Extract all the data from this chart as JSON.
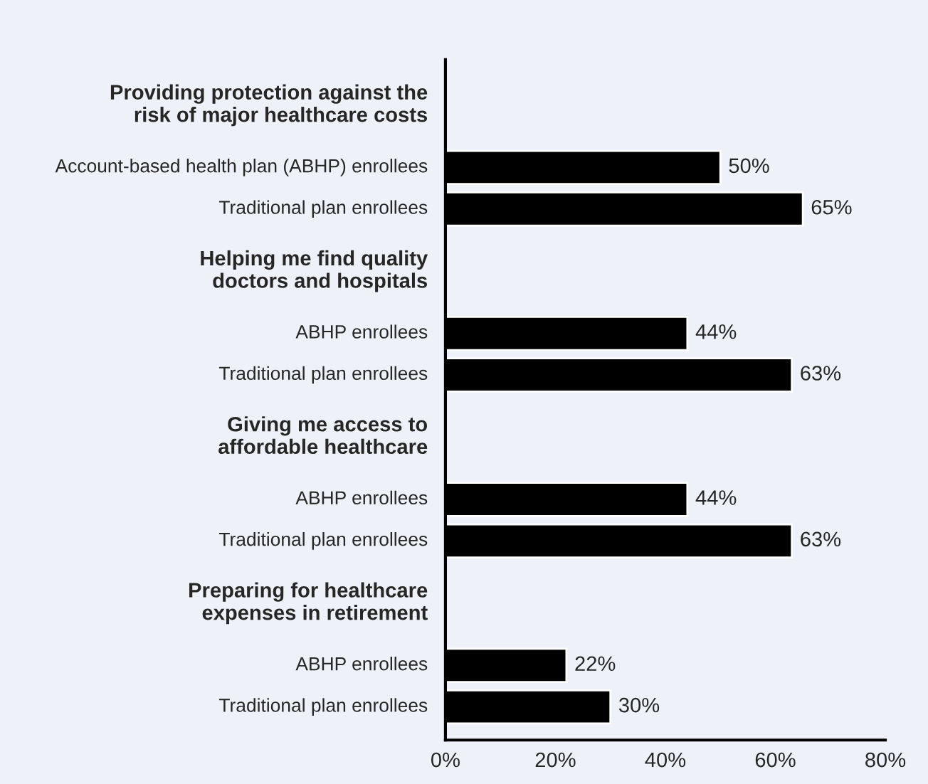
{
  "chart_data": {
    "type": "bar",
    "orientation": "horizontal",
    "categories": [
      "Providing protection against the\nrisk of major healthcare costs",
      "Account-based health plan (ABHP) enrollees",
      "Traditional plan enrollees",
      "Helping me find quality\ndoctors and hospitals",
      "ABHP enrollees",
      "Traditional plan enrollees",
      "Giving me access to\naffordable healthcare",
      "ABHP enrollees",
      "Traditional plan enrollees",
      "Preparing for healthcare\nexpenses in retirement",
      "ABHP enrollees",
      "Traditional plan enrollees"
    ],
    "values": [
      null,
      50,
      65,
      null,
      44,
      63,
      null,
      44,
      63,
      null,
      22,
      30
    ],
    "value_labels": [
      null,
      "50%",
      "65%",
      null,
      "44%",
      "63%",
      null,
      "44%",
      "63%",
      null,
      "22%",
      "30%"
    ],
    "color": "#000000",
    "xlim": [
      0,
      80
    ],
    "xticks": [
      {
        "value": 0,
        "label": "0%"
      },
      {
        "value": 20,
        "label": "20%"
      },
      {
        "value": 40,
        "label": "40%"
      },
      {
        "value": 60,
        "label": "60%"
      },
      {
        "value": 80,
        "label": "80%"
      }
    ],
    "grid": false,
    "legend": false
  }
}
